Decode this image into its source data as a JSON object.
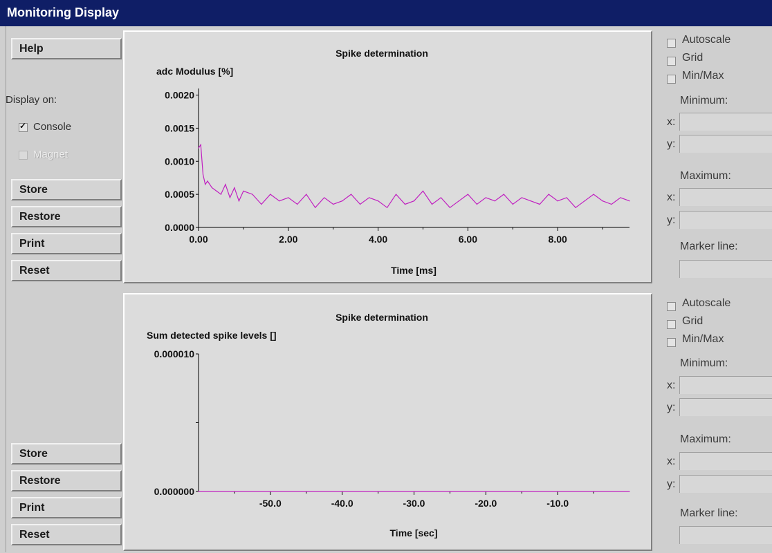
{
  "window": {
    "title": "Monitoring Display"
  },
  "left": {
    "help": "Help",
    "display_on": "Display on:",
    "console": {
      "label": "Console",
      "checked": true
    },
    "magnet": {
      "label": "Magnet",
      "checked": false,
      "enabled": false
    },
    "top_buttons": [
      "Store",
      "Restore",
      "Print",
      "Reset"
    ],
    "bottom_buttons": [
      "Store",
      "Restore",
      "Print",
      "Reset"
    ]
  },
  "right_panels": [
    {
      "autoscale": "Autoscale",
      "grid": "Grid",
      "minmax": "Min/Max",
      "minimum": "Minimum:",
      "maximum": "Maximum:",
      "x": "x:",
      "y": "y:",
      "marker": "Marker line:",
      "min_x": "",
      "min_y": "",
      "max_x": "",
      "max_y": "",
      "marker_value": ""
    },
    {
      "autoscale": "Autoscale",
      "grid": "Grid",
      "minmax": "Min/Max",
      "minimum": "Minimum:",
      "maximum": "Maximum:",
      "x": "x:",
      "y": "y:",
      "marker": "Marker line:",
      "min_x": "",
      "min_y": "",
      "max_x": "",
      "max_y": "",
      "marker_value": ""
    }
  ],
  "colors": {
    "title_bar": "#0f1e66",
    "series": "#c020c0",
    "background": "#cfcfcf",
    "plot_panel": "#dcdcdc"
  },
  "chart_data": [
    {
      "type": "line",
      "title": "Spike determination",
      "ylabel": "adc Modulus [%]",
      "xlabel": "Time [ms]",
      "xlim": [
        0,
        9.6
      ],
      "ylim": [
        0,
        0.0021
      ],
      "x_ticks": [
        "0.00",
        "2.00",
        "4.00",
        "6.00",
        "8.00"
      ],
      "y_ticks": [
        "0.0000",
        "0.0005",
        "0.0010",
        "0.0015",
        "0.0020"
      ],
      "grid": false,
      "series": [
        {
          "x": [
            0.0,
            0.05,
            0.1,
            0.15,
            0.2,
            0.3,
            0.4,
            0.5,
            0.6,
            0.7,
            0.8,
            0.9,
            1.0,
            1.2,
            1.4,
            1.6,
            1.8,
            2.0,
            2.2,
            2.4,
            2.6,
            2.8,
            3.0,
            3.2,
            3.4,
            3.6,
            3.8,
            4.0,
            4.2,
            4.4,
            4.6,
            4.8,
            5.0,
            5.2,
            5.4,
            5.6,
            5.8,
            6.0,
            6.2,
            6.4,
            6.6,
            6.8,
            7.0,
            7.2,
            7.4,
            7.6,
            7.8,
            8.0,
            8.2,
            8.4,
            8.6,
            8.8,
            9.0,
            9.2,
            9.4,
            9.6
          ],
          "y": [
            0.0012,
            0.00125,
            0.0008,
            0.00065,
            0.0007,
            0.0006,
            0.00055,
            0.0005,
            0.00065,
            0.00045,
            0.0006,
            0.0004,
            0.00055,
            0.0005,
            0.00035,
            0.0005,
            0.0004,
            0.00045,
            0.00035,
            0.0005,
            0.0003,
            0.00045,
            0.00035,
            0.0004,
            0.0005,
            0.00035,
            0.00045,
            0.0004,
            0.0003,
            0.0005,
            0.00035,
            0.0004,
            0.00055,
            0.00035,
            0.00045,
            0.0003,
            0.0004,
            0.0005,
            0.00035,
            0.00045,
            0.0004,
            0.0005,
            0.00035,
            0.00045,
            0.0004,
            0.00035,
            0.0005,
            0.0004,
            0.00045,
            0.0003,
            0.0004,
            0.0005,
            0.0004,
            0.00035,
            0.00045,
            0.0004
          ]
        }
      ]
    },
    {
      "type": "line",
      "title": "Spike determination",
      "ylabel": "Sum detected spike levels []",
      "xlabel": "Time [sec]",
      "xlim": [
        -60,
        0
      ],
      "ylim": [
        0,
        1e-05
      ],
      "x_ticks": [
        "-50.0",
        "-40.0",
        "-30.0",
        "-20.0",
        "-10.0"
      ],
      "y_ticks": [
        "0.000000",
        "0.000010"
      ],
      "grid": false,
      "series": [
        {
          "x": [
            -60,
            0
          ],
          "y": [
            0,
            0
          ]
        }
      ]
    }
  ]
}
